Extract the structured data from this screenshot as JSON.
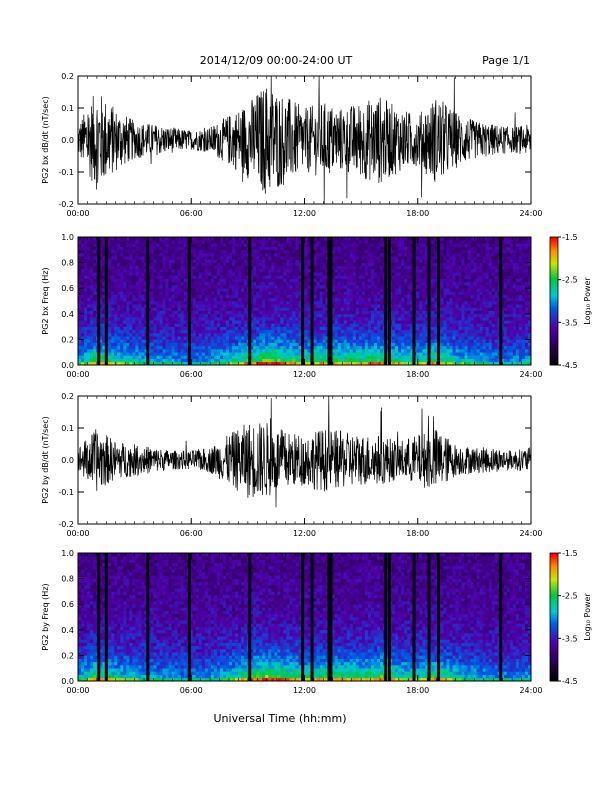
{
  "header": {
    "title": "2014/12/09  00:00-24:00 UT",
    "page_label": "Page 1/1"
  },
  "xlabel": "Universal Time (hh:mm)",
  "chart_data": [
    {
      "type": "line",
      "ylabel": "PG2 bx dB/dt (nT/sec)",
      "x_ticks": [
        "00:00",
        "06:00",
        "12:00",
        "18:00",
        "24:00"
      ],
      "xlim": [
        0,
        24
      ],
      "ylim": [
        -0.2,
        0.2
      ],
      "y_ticks": [
        "-0.2",
        "-0.1",
        "0.0",
        "0.1",
        "0.2"
      ],
      "series": [
        {
          "x": [
            0,
            1,
            2,
            3,
            4,
            5,
            6,
            7,
            8,
            9,
            10,
            11,
            12,
            13,
            14,
            15,
            16,
            17,
            18,
            19,
            20,
            21,
            22,
            23,
            24
          ],
          "amplitude": [
            0.05,
            0.16,
            0.1,
            0.06,
            0.05,
            0.04,
            0.03,
            0.04,
            0.08,
            0.12,
            0.18,
            0.14,
            0.1,
            0.12,
            0.1,
            0.12,
            0.14,
            0.1,
            0.08,
            0.14,
            0.09,
            0.06,
            0.05,
            0.04,
            0.05
          ]
        }
      ]
    },
    {
      "type": "heatmap",
      "ylabel": "PG2 bx Freq (Hz)",
      "x_ticks": [
        "00:00",
        "06:00",
        "12:00",
        "18:00",
        "24:00"
      ],
      "xlim": [
        0,
        24
      ],
      "ylim": [
        0,
        1.0
      ],
      "y_ticks": [
        "0.0",
        "0.2",
        "0.4",
        "0.6",
        "0.8",
        "1.0"
      ],
      "colorbar": {
        "label": "Log₁₀ Power",
        "ticks": [
          "-1.5",
          "-2.5",
          "-3.5",
          "-4.5"
        ],
        "range": [
          -4.5,
          -1.5
        ]
      },
      "gap_hours": [
        1.1,
        1.5,
        3.7,
        5.9,
        9.1,
        11.9,
        12.4,
        13.3,
        13.4,
        16.3,
        16.5,
        17.8,
        18.6,
        19.1,
        22.4
      ]
    },
    {
      "type": "line",
      "ylabel": "PG2 by dB/dt (nT/sec)",
      "x_ticks": [
        "00:00",
        "06:00",
        "12:00",
        "18:00",
        "24:00"
      ],
      "xlim": [
        0,
        24
      ],
      "ylim": [
        -0.2,
        0.2
      ],
      "y_ticks": [
        "-0.2",
        "-0.1",
        "0.0",
        "0.1",
        "0.2"
      ],
      "series": [
        {
          "x": [
            0,
            1,
            2,
            3,
            4,
            5,
            6,
            7,
            8,
            9,
            10,
            11,
            12,
            13,
            14,
            15,
            16,
            17,
            18,
            19,
            20,
            21,
            22,
            23,
            24
          ],
          "amplitude": [
            0.04,
            0.1,
            0.06,
            0.05,
            0.04,
            0.03,
            0.03,
            0.04,
            0.08,
            0.12,
            0.12,
            0.09,
            0.08,
            0.1,
            0.09,
            0.08,
            0.08,
            0.06,
            0.08,
            0.1,
            0.05,
            0.04,
            0.04,
            0.03,
            0.04
          ]
        }
      ]
    },
    {
      "type": "heatmap",
      "ylabel": "PG2 by Freq (Hz)",
      "x_ticks": [
        "00:00",
        "06:00",
        "12:00",
        "18:00",
        "24:00"
      ],
      "xlim": [
        0,
        24
      ],
      "ylim": [
        0,
        1.0
      ],
      "y_ticks": [
        "0.0",
        "0.2",
        "0.4",
        "0.6",
        "0.8",
        "1.0"
      ],
      "colorbar": {
        "label": "Log₁₀ Power",
        "ticks": [
          "-1.5",
          "-2.5",
          "-3.5",
          "-4.5"
        ],
        "range": [
          -4.5,
          -1.5
        ]
      },
      "gap_hours": [
        1.1,
        1.5,
        3.7,
        5.9,
        9.1,
        11.9,
        12.4,
        13.3,
        13.4,
        16.3,
        16.5,
        17.8,
        18.6,
        19.1,
        22.4
      ]
    }
  ]
}
